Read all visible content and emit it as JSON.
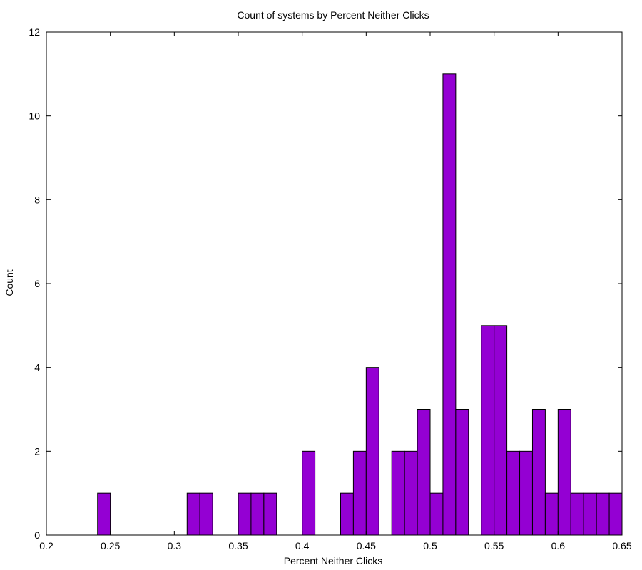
{
  "chart_data": {
    "type": "bar",
    "title": "Count of systems by Percent Neither Clicks",
    "xlabel": "Percent Neither Clicks",
    "ylabel": "Count",
    "xlim": [
      0.2,
      0.65
    ],
    "ylim": [
      0,
      12
    ],
    "bin_width": 0.01,
    "bar_color": "#9400d3",
    "x_ticks": [
      {
        "value": 0.2,
        "label": "0.2"
      },
      {
        "value": 0.25,
        "label": "0.25"
      },
      {
        "value": 0.3,
        "label": "0.3"
      },
      {
        "value": 0.35,
        "label": "0.35"
      },
      {
        "value": 0.4,
        "label": "0.4"
      },
      {
        "value": 0.45,
        "label": "0.45"
      },
      {
        "value": 0.5,
        "label": "0.5"
      },
      {
        "value": 0.55,
        "label": "0.55"
      },
      {
        "value": 0.6,
        "label": "0.6"
      },
      {
        "value": 0.65,
        "label": "0.65"
      }
    ],
    "y_ticks": [
      {
        "value": 0,
        "label": "0"
      },
      {
        "value": 2,
        "label": "2"
      },
      {
        "value": 4,
        "label": "4"
      },
      {
        "value": 6,
        "label": "6"
      },
      {
        "value": 8,
        "label": "8"
      },
      {
        "value": 10,
        "label": "10"
      },
      {
        "value": 12,
        "label": "12"
      }
    ],
    "bins": [
      {
        "start": 0.24,
        "count": 1
      },
      {
        "start": 0.31,
        "count": 1
      },
      {
        "start": 0.32,
        "count": 1
      },
      {
        "start": 0.35,
        "count": 1
      },
      {
        "start": 0.36,
        "count": 1
      },
      {
        "start": 0.37,
        "count": 1
      },
      {
        "start": 0.4,
        "count": 2
      },
      {
        "start": 0.43,
        "count": 1
      },
      {
        "start": 0.44,
        "count": 2
      },
      {
        "start": 0.45,
        "count": 4
      },
      {
        "start": 0.47,
        "count": 2
      },
      {
        "start": 0.48,
        "count": 2
      },
      {
        "start": 0.49,
        "count": 3
      },
      {
        "start": 0.5,
        "count": 1
      },
      {
        "start": 0.51,
        "count": 11
      },
      {
        "start": 0.52,
        "count": 3
      },
      {
        "start": 0.54,
        "count": 5
      },
      {
        "start": 0.55,
        "count": 5
      },
      {
        "start": 0.56,
        "count": 2
      },
      {
        "start": 0.57,
        "count": 2
      },
      {
        "start": 0.58,
        "count": 3
      },
      {
        "start": 0.59,
        "count": 1
      },
      {
        "start": 0.6,
        "count": 3
      },
      {
        "start": 0.61,
        "count": 1
      },
      {
        "start": 0.62,
        "count": 1
      },
      {
        "start": 0.63,
        "count": 1
      },
      {
        "start": 0.64,
        "count": 1
      }
    ]
  }
}
